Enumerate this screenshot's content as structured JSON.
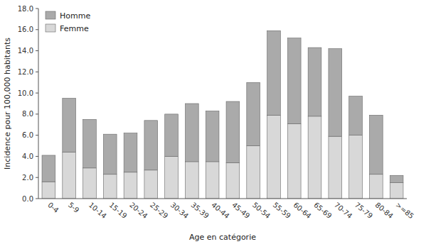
{
  "chart_data": {
    "type": "bar",
    "stacked": true,
    "xlabel": "Age en catégorie",
    "ylabel": "Incidence pour 100,000 habitants",
    "categories": [
      "0-4",
      "5-9",
      "10-14",
      "15-19",
      "20-24",
      "25-29",
      "30-34",
      "35-39",
      "40-44",
      "45-49",
      "50-54",
      "55-59",
      "60-64",
      "65-69",
      "70-74",
      "75-79",
      "80-84",
      ">=85"
    ],
    "series": [
      {
        "name": "Femme",
        "color": "#d8d8d8",
        "values": [
          1.6,
          4.4,
          2.9,
          2.3,
          2.5,
          2.7,
          4.0,
          3.5,
          3.5,
          3.4,
          5.0,
          7.9,
          7.1,
          7.8,
          5.9,
          6.0,
          2.3,
          1.5
        ]
      },
      {
        "name": "Homme",
        "color": "#aaaaaa",
        "values": [
          2.5,
          5.1,
          4.6,
          3.8,
          3.7,
          4.7,
          4.0,
          5.5,
          4.8,
          5.8,
          6.0,
          8.0,
          8.1,
          6.5,
          8.3,
          3.7,
          5.6,
          0.7
        ]
      }
    ],
    "ylim": [
      0,
      18.0
    ],
    "yticks": [
      {
        "value": 0.0,
        "label": "0.0"
      },
      {
        "value": 2.0,
        "label": "2.0"
      },
      {
        "value": 4.0,
        "label": "4.0"
      },
      {
        "value": 6.0,
        "label": "6.0"
      },
      {
        "value": 8.0,
        "label": "8.0"
      },
      {
        "value": 10.0,
        "label": "10.0"
      },
      {
        "value": 12.0,
        "label": "12.0"
      },
      {
        "value": 14.0,
        "label": "14.0"
      },
      {
        "value": 16.0,
        "label": "16.0"
      },
      {
        "value": 18.0,
        "label": "18.0"
      }
    ],
    "grid": false,
    "legend": "upper left"
  }
}
